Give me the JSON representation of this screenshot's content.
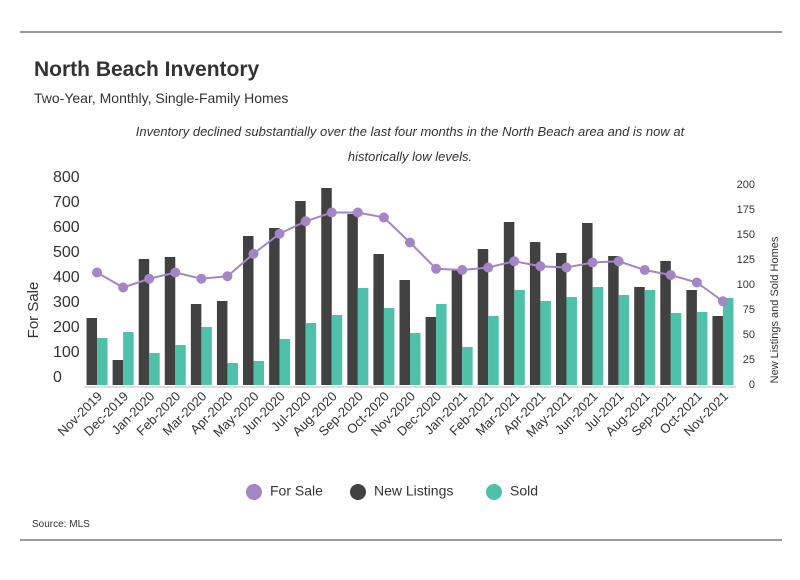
{
  "chart_data": {
    "type": "bar",
    "title": "North Beach Inventory",
    "subtitle": "Two-Year, Monthly, Single-Family Homes",
    "annotation": [
      "Inventory declined substantially over the last four months in the North Beach area and is now at",
      "historically low levels."
    ],
    "ylabel": "For Sale",
    "y2label": "New Listings and Sold Homes",
    "source": "Source:  MLS",
    "categories": [
      "Nov-2019",
      "Dec-2019",
      "Jan-2020",
      "Feb-2020",
      "Mar-2020",
      "Apr-2020",
      "May-2020",
      "Jun-2020",
      "Jul-2020",
      "Aug-2020",
      "Sep-2020",
      "Oct-2020",
      "Nov-2020",
      "Dec-2020",
      "Jan-2021",
      "Feb-2021",
      "Mar-2021",
      "Apr-2021",
      "May-2021",
      "Jun-2021",
      "Jul-2021",
      "Aug-2021",
      "Sep-2021",
      "Oct-2021",
      "Nov-2021"
    ],
    "series": [
      {
        "name": "For Sale",
        "type": "line",
        "axis": "y",
        "color": "#a386c6",
        "values": [
          450,
          390,
          425,
          450,
          425,
          435,
          525,
          605,
          655,
          690,
          690,
          670,
          570,
          465,
          460,
          470,
          495,
          475,
          470,
          490,
          495,
          460,
          440,
          410,
          335
        ]
      },
      {
        "name": "New Listings",
        "type": "bar",
        "axis": "y2",
        "color": "#414141",
        "values": [
          67,
          25,
          126,
          128,
          81,
          84,
          149,
          157,
          184,
          197,
          171,
          131,
          105,
          68,
          115,
          136,
          163,
          143,
          132,
          162,
          129,
          98,
          124,
          95,
          69
        ]
      },
      {
        "name": "Sold",
        "type": "bar",
        "axis": "y2",
        "color": "#4fc1a9",
        "values": [
          47,
          53,
          32,
          40,
          58,
          22,
          24,
          46,
          62,
          70,
          97,
          77,
          52,
          81,
          38,
          69,
          95,
          84,
          88,
          98,
          90,
          95,
          72,
          73,
          87
        ]
      }
    ],
    "ylim": [
      0,
      800
    ],
    "yticks": [
      0,
      100,
      200,
      300,
      400,
      500,
      600,
      700,
      800
    ],
    "y2lim": [
      0,
      200
    ],
    "y2ticks": [
      0,
      25,
      50,
      75,
      100,
      125,
      150,
      175,
      200
    ],
    "legend": "bottom"
  }
}
